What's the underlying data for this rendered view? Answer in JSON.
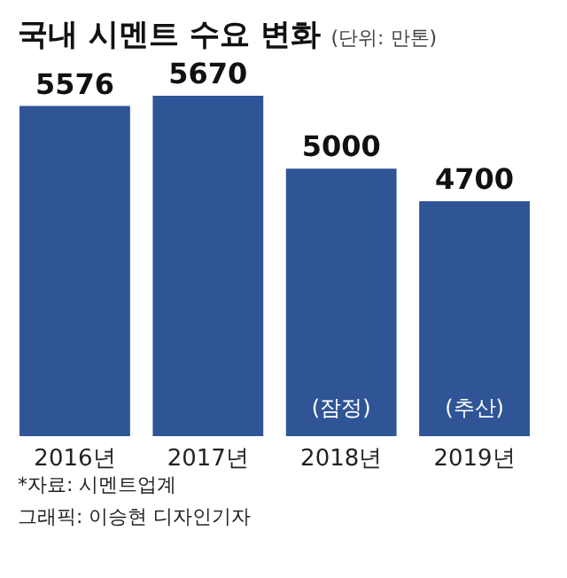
{
  "chart_data": {
    "type": "bar",
    "title": "국내 시멘트 수요 변화",
    "subtitle": "(단위: 만톤)",
    "categories": [
      "2016년",
      "2017년",
      "2018년",
      "2019년"
    ],
    "values": [
      5576,
      5670,
      5000,
      4700
    ],
    "color": "#2f5597",
    "data_labels": true,
    "ylim": [
      2540,
      5670
    ],
    "grid": false,
    "annotations": [
      "(잠정)",
      "(추산)",
      "*자료: 시멘트업계",
      "그래픽: 이승현 디자인기자"
    ]
  }
}
